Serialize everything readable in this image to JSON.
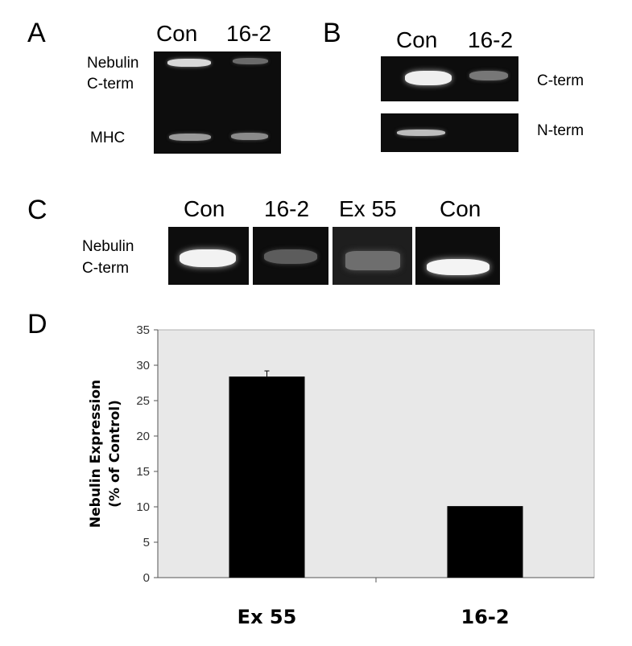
{
  "panels": {
    "A": {
      "letter": "A",
      "lanes": [
        "Con",
        "16-2"
      ],
      "labels": {
        "nebulin_line1": "Nebulin",
        "nebulin_line2": "C-term",
        "mhc": "MHC"
      }
    },
    "B": {
      "letter": "B",
      "lanes": [
        "Con",
        "16-2"
      ],
      "labels": {
        "cterm": "C-term",
        "nterm": "N-term"
      }
    },
    "C": {
      "letter": "C",
      "lanes": [
        "Con",
        "16-2",
        "Ex 55",
        "Con"
      ],
      "labels": {
        "line1": "Nebulin",
        "line2": "C-term"
      }
    },
    "D": {
      "letter": "D"
    }
  },
  "chart_data": {
    "type": "bar",
    "categories": [
      "Ex 55",
      "16-2"
    ],
    "values": [
      28.4,
      10.1
    ],
    "error": [
      0.8,
      0
    ],
    "ylabel_line1": "Nebulin Expression",
    "ylabel_line2": "(% of Control)",
    "ylim": [
      0,
      35
    ],
    "yticks": [
      0,
      5,
      10,
      15,
      20,
      25,
      30,
      35
    ],
    "grid": false,
    "plot_background": "#e8e8e8",
    "bar_color": "#000000"
  }
}
